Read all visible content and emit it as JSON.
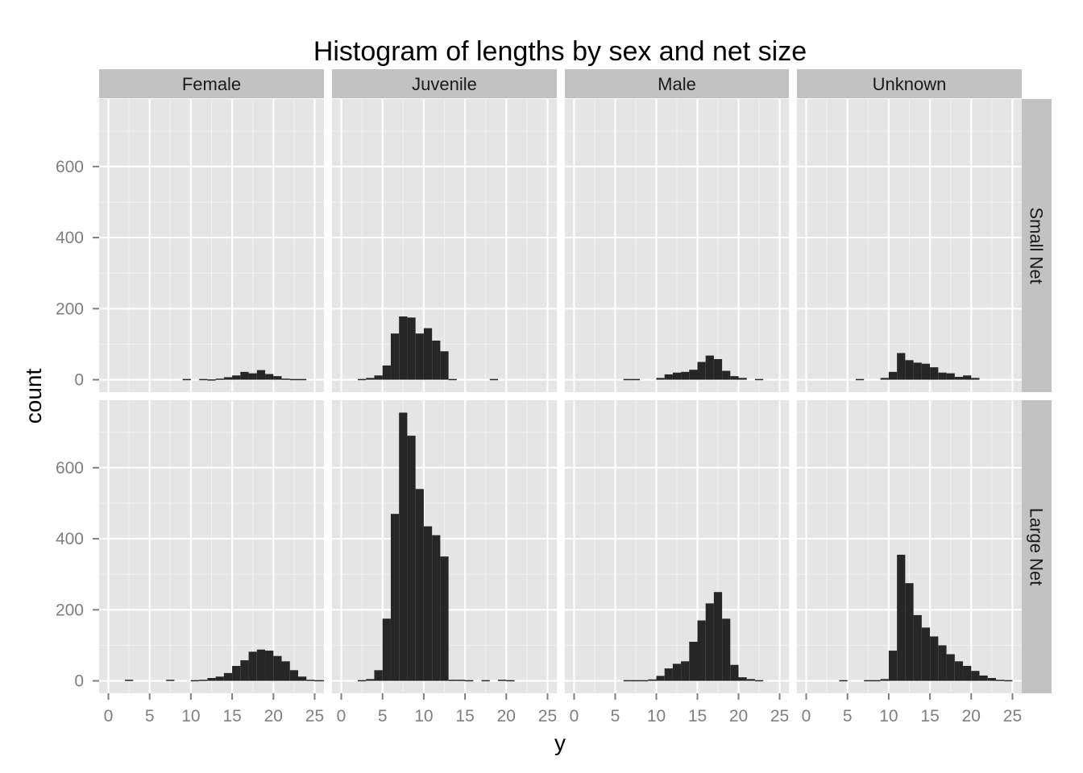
{
  "chart_data": {
    "type": "bar",
    "title": "Histogram of lengths by sex and net size",
    "xlabel": "y",
    "ylabel": "count",
    "xlim": [
      0,
      25
    ],
    "ylim": [
      -35,
      790
    ],
    "x_ticks": [
      0,
      5,
      10,
      15,
      20,
      25
    ],
    "y_ticks": [
      0,
      200,
      400,
      600
    ],
    "grid": true,
    "bin_width": 1,
    "column_facets": [
      "Female",
      "Juvenile",
      "Male",
      "Unknown"
    ],
    "row_facets": [
      "Small Net",
      "Large Net"
    ],
    "bar_color": "#262626",
    "panel_background": "#e5e5e5",
    "strip_background": "#c2c2c2",
    "panels": [
      {
        "row": "Small Net",
        "col": "Female",
        "bars": [
          [
            9,
            2
          ],
          [
            11,
            2
          ],
          [
            12,
            1
          ],
          [
            13,
            3
          ],
          [
            14,
            7
          ],
          [
            15,
            12
          ],
          [
            16,
            22
          ],
          [
            17,
            18
          ],
          [
            18,
            27
          ],
          [
            19,
            16
          ],
          [
            20,
            10
          ],
          [
            21,
            3
          ],
          [
            22,
            2
          ],
          [
            23,
            2
          ]
        ]
      },
      {
        "row": "Small Net",
        "col": "Juvenile",
        "bars": [
          [
            2,
            2
          ],
          [
            3,
            5
          ],
          [
            4,
            12
          ],
          [
            5,
            40
          ],
          [
            6,
            130
          ],
          [
            7,
            178
          ],
          [
            8,
            175
          ],
          [
            9,
            130
          ],
          [
            10,
            145
          ],
          [
            11,
            110
          ],
          [
            12,
            80
          ],
          [
            13,
            2
          ],
          [
            18,
            2
          ]
        ]
      },
      {
        "row": "Small Net",
        "col": "Male",
        "bars": [
          [
            6,
            2
          ],
          [
            7,
            2
          ],
          [
            10,
            5
          ],
          [
            11,
            15
          ],
          [
            12,
            20
          ],
          [
            13,
            22
          ],
          [
            14,
            28
          ],
          [
            15,
            50
          ],
          [
            16,
            68
          ],
          [
            17,
            58
          ],
          [
            18,
            25
          ],
          [
            19,
            10
          ],
          [
            20,
            5
          ],
          [
            22,
            2
          ]
        ]
      },
      {
        "row": "Small Net",
        "col": "Unknown",
        "bars": [
          [
            6,
            2
          ],
          [
            9,
            5
          ],
          [
            10,
            22
          ],
          [
            11,
            75
          ],
          [
            12,
            55
          ],
          [
            13,
            48
          ],
          [
            14,
            45
          ],
          [
            15,
            35
          ],
          [
            16,
            20
          ],
          [
            17,
            18
          ],
          [
            18,
            8
          ],
          [
            19,
            12
          ],
          [
            20,
            5
          ]
        ]
      },
      {
        "row": "Large Net",
        "col": "Female",
        "bars": [
          [
            2,
            3
          ],
          [
            7,
            3
          ],
          [
            10,
            2
          ],
          [
            11,
            3
          ],
          [
            12,
            8
          ],
          [
            13,
            12
          ],
          [
            14,
            22
          ],
          [
            15,
            42
          ],
          [
            16,
            58
          ],
          [
            17,
            82
          ],
          [
            18,
            88
          ],
          [
            19,
            85
          ],
          [
            20,
            70
          ],
          [
            21,
            55
          ],
          [
            22,
            30
          ],
          [
            23,
            12
          ],
          [
            24,
            3
          ],
          [
            25,
            2
          ],
          [
            26,
            2
          ]
        ]
      },
      {
        "row": "Large Net",
        "col": "Juvenile",
        "bars": [
          [
            2,
            2
          ],
          [
            3,
            5
          ],
          [
            4,
            30
          ],
          [
            5,
            175
          ],
          [
            6,
            470
          ],
          [
            7,
            755
          ],
          [
            8,
            690
          ],
          [
            9,
            540
          ],
          [
            10,
            435
          ],
          [
            11,
            410
          ],
          [
            12,
            350
          ],
          [
            13,
            3
          ],
          [
            14,
            3
          ],
          [
            15,
            2
          ],
          [
            17,
            2
          ],
          [
            19,
            3
          ],
          [
            20,
            2
          ]
        ]
      },
      {
        "row": "Large Net",
        "col": "Male",
        "bars": [
          [
            6,
            2
          ],
          [
            7,
            2
          ],
          [
            8,
            2
          ],
          [
            9,
            4
          ],
          [
            10,
            14
          ],
          [
            11,
            35
          ],
          [
            12,
            48
          ],
          [
            13,
            55
          ],
          [
            14,
            110
          ],
          [
            15,
            170
          ],
          [
            16,
            218
          ],
          [
            17,
            250
          ],
          [
            18,
            175
          ],
          [
            19,
            45
          ],
          [
            20,
            10
          ],
          [
            21,
            5
          ],
          [
            22,
            2
          ]
        ]
      },
      {
        "row": "Large Net",
        "col": "Unknown",
        "bars": [
          [
            4,
            2
          ],
          [
            7,
            2
          ],
          [
            8,
            2
          ],
          [
            9,
            5
          ],
          [
            10,
            85
          ],
          [
            11,
            355
          ],
          [
            12,
            275
          ],
          [
            13,
            185
          ],
          [
            14,
            150
          ],
          [
            15,
            125
          ],
          [
            16,
            100
          ],
          [
            17,
            75
          ],
          [
            18,
            55
          ],
          [
            19,
            42
          ],
          [
            20,
            28
          ],
          [
            21,
            15
          ],
          [
            22,
            8
          ],
          [
            23,
            3
          ],
          [
            24,
            2
          ]
        ]
      }
    ]
  }
}
